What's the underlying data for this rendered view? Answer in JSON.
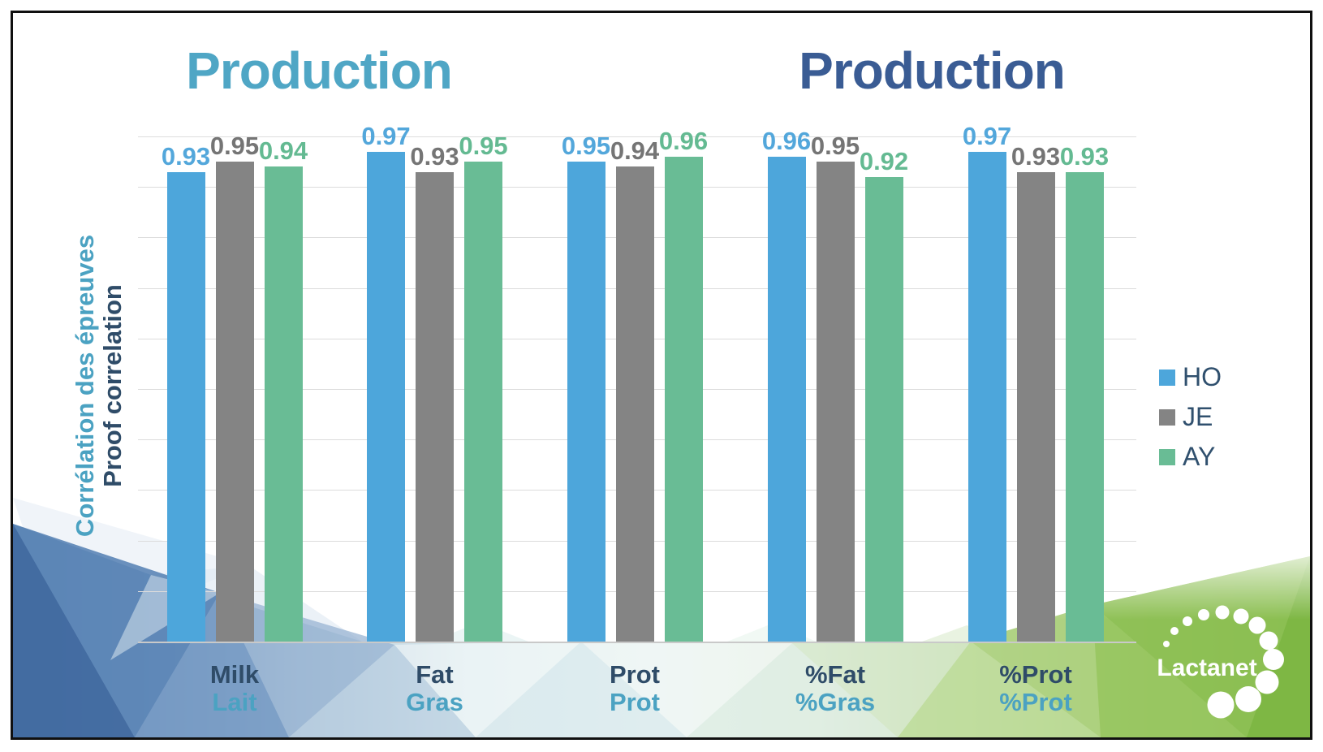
{
  "slide": {
    "type": "presentation-slide"
  },
  "titles": {
    "left": {
      "text": "Production",
      "color": "#4FA6C5"
    },
    "right": {
      "text": "Production",
      "color": "#3A5C94"
    }
  },
  "y_axis": {
    "line1": "Corrélation des épreuves",
    "line2": "Proof correlation",
    "line1_color": "#4BA2C2",
    "line2_color": "#2F4C68"
  },
  "legend": {
    "position": "right",
    "text_color": "#30506E",
    "items": [
      {
        "label": "HO",
        "color": "#4DA6DB"
      },
      {
        "label": "JE",
        "color": "#848484"
      },
      {
        "label": "AY",
        "color": "#69BC95"
      }
    ]
  },
  "chart_data": {
    "type": "bar",
    "title": "Production",
    "categories": [
      {
        "en": "Milk",
        "fr": "Lait"
      },
      {
        "en": "Fat",
        "fr": "Gras"
      },
      {
        "en": "Prot",
        "fr": "Prot"
      },
      {
        "en": "%Fat",
        "fr": "%Gras"
      },
      {
        "en": "%Prot",
        "fr": "%Prot"
      }
    ],
    "series": [
      {
        "name": "HO",
        "color": "#4DA6DB",
        "label_color": "#53A7DB",
        "values": [
          0.93,
          0.97,
          0.95,
          0.96,
          0.97
        ]
      },
      {
        "name": "JE",
        "color": "#848484",
        "label_color": "#757575",
        "values": [
          0.95,
          0.93,
          0.94,
          0.95,
          0.93
        ]
      },
      {
        "name": "AY",
        "color": "#69BC95",
        "label_color": "#64BA92",
        "values": [
          0.94,
          0.95,
          0.96,
          0.92,
          0.93
        ]
      }
    ],
    "ylabel": "Corrélation des épreuves / Proof correlation",
    "xlabel": "",
    "ylim": [
      0,
      1.0
    ],
    "gridline_step": 0.1,
    "grid": true,
    "value_labels": true,
    "legend_position": "right",
    "category_label_colors": {
      "en": "#2F4C68",
      "fr": "#4BA2C2"
    }
  },
  "logo": {
    "text": "Lactanet",
    "color": "#FFFFFF"
  }
}
